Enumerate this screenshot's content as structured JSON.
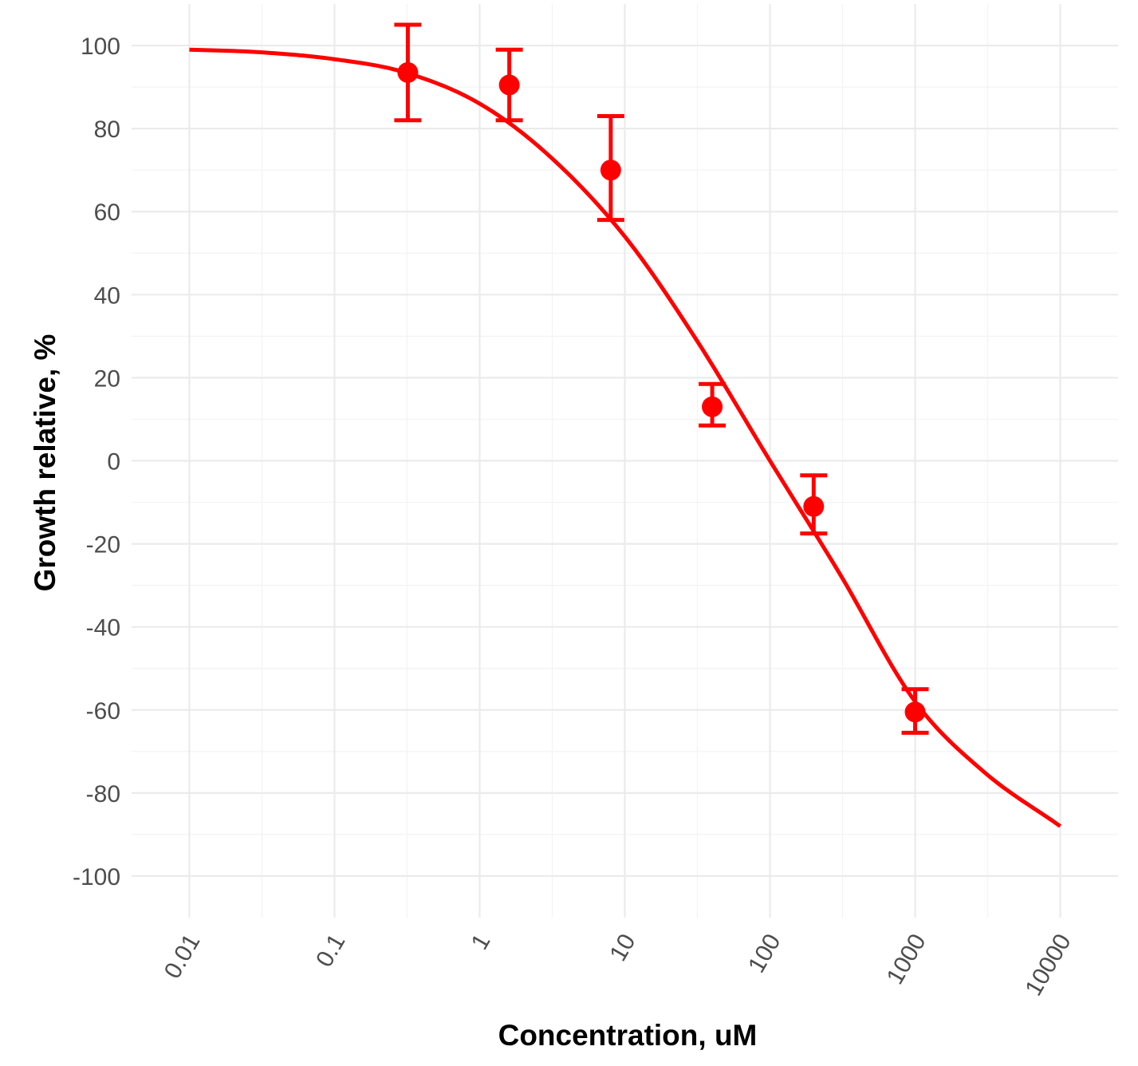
{
  "chart_data": {
    "type": "scatter",
    "xlabel": "Concentration, uM",
    "ylabel": "Growth relative, %",
    "x_scale": "log10",
    "xlim": [
      0.004,
      25000
    ],
    "ylim": [
      -110,
      110
    ],
    "x_ticks": [
      0.01,
      0.1,
      1,
      10,
      100,
      1000,
      10000
    ],
    "x_tick_labels": [
      "0.01",
      "0.1",
      "1",
      "10",
      "100",
      "1000",
      "10000"
    ],
    "y_ticks": [
      100,
      80,
      60,
      40,
      20,
      0,
      -20,
      -40,
      -60,
      -80,
      -100
    ],
    "y_tick_labels": [
      "100",
      "80",
      "60",
      "40",
      "20",
      "0",
      "-20",
      "-40",
      "-60",
      "-80",
      "-100"
    ],
    "grid": true,
    "color": "#ff0000",
    "series": [
      {
        "points": [
          {
            "x": 0.32,
            "y": 93.5,
            "ymin": 82,
            "ymax": 105
          },
          {
            "x": 1.6,
            "y": 90.5,
            "ymin": 82,
            "ymax": 99
          },
          {
            "x": 8,
            "y": 70,
            "ymin": 58,
            "ymax": 83
          },
          {
            "x": 40,
            "y": 13,
            "ymin": 8.5,
            "ymax": 18.5
          },
          {
            "x": 200,
            "y": -11,
            "ymin": -17.5,
            "ymax": -3.5
          },
          {
            "x": 1000,
            "y": -60.5,
            "ymin": -65.5,
            "ymax": -55
          }
        ],
        "fit_curve": {
          "x": [
            0.01,
            0.03,
            0.1,
            0.3,
            1,
            3,
            10,
            30,
            100,
            300,
            1000,
            3000,
            10000
          ],
          "y": [
            99,
            98.4,
            96.7,
            93.6,
            86,
            73.5,
            54,
            30,
            0,
            -27,
            -58,
            -75,
            -88
          ]
        }
      }
    ]
  }
}
